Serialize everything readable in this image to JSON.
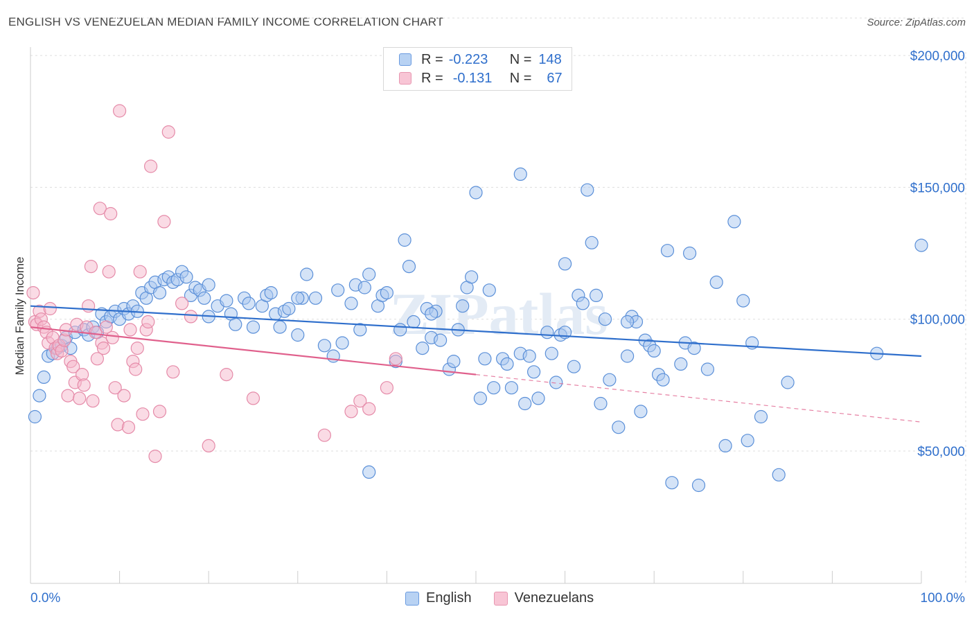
{
  "header": {
    "title": "ENGLISH VS VENEZUELAN MEDIAN FAMILY INCOME CORRELATION CHART",
    "source": "Source: ZipAtlas.com"
  },
  "legend": {
    "rows": [
      {
        "r_label": "R =",
        "r_value": "-0.223",
        "n_label": "N =",
        "n_value": "148"
      },
      {
        "r_label": "R =",
        "r_value": "-0.131",
        "n_label": "N =",
        "n_value": "67"
      }
    ]
  },
  "bottom_legend": {
    "english": "English",
    "venezuelans": "Venezuelans"
  },
  "watermark": "ZIPatlas",
  "colors": {
    "english_fill": "#a9c8f0",
    "english_stroke": "#5a8fd8",
    "english_line": "#2f6fcc",
    "venezuelan_fill": "#f6b8cc",
    "venezuelan_stroke": "#e58aa8",
    "venezuelan_line": "#e0608c",
    "axis_label": "#2f6fcc",
    "grid": "#dddddd"
  },
  "chart_data": {
    "type": "scatter",
    "title": "ENGLISH VS VENEZUELAN MEDIAN FAMILY INCOME CORRELATION CHART",
    "xlabel": "",
    "ylabel": "Median Family Income",
    "xlim": [
      0,
      100
    ],
    "ylim": [
      0,
      215000
    ],
    "x_tick_labels": [
      "0.0%",
      "100.0%"
    ],
    "y_ticks": [
      50000,
      100000,
      150000,
      200000
    ],
    "y_tick_labels": [
      "$50,000",
      "$100,000",
      "$150,000",
      "$200,000"
    ],
    "grid": true,
    "legend_position": "top-center",
    "series": [
      {
        "name": "English",
        "R": -0.223,
        "N": 148,
        "trend": {
          "x": [
            0,
            100
          ],
          "y": [
            105000,
            86000
          ]
        },
        "points": [
          [
            0.5,
            63000
          ],
          [
            1,
            71000
          ],
          [
            1.5,
            78000
          ],
          [
            2,
            86000
          ],
          [
            2.5,
            87000
          ],
          [
            3,
            89000
          ],
          [
            3.5,
            90000
          ],
          [
            4,
            93000
          ],
          [
            4.5,
            89000
          ],
          [
            5,
            95000
          ],
          [
            6,
            96000
          ],
          [
            6.5,
            94000
          ],
          [
            7,
            97000
          ],
          [
            7.5,
            95000
          ],
          [
            8,
            102000
          ],
          [
            8.5,
            99000
          ],
          [
            9,
            101000
          ],
          [
            9.5,
            103000
          ],
          [
            10,
            100000
          ],
          [
            10.5,
            104000
          ],
          [
            11,
            102000
          ],
          [
            11.5,
            105000
          ],
          [
            12,
            103000
          ],
          [
            12.5,
            110000
          ],
          [
            13,
            108000
          ],
          [
            13.5,
            112000
          ],
          [
            14,
            114000
          ],
          [
            14.5,
            110000
          ],
          [
            15,
            115000
          ],
          [
            15.5,
            116000
          ],
          [
            16,
            114000
          ],
          [
            16.5,
            115000
          ],
          [
            17,
            118000
          ],
          [
            17.5,
            116000
          ],
          [
            18,
            109000
          ],
          [
            18.5,
            112000
          ],
          [
            19,
            111000
          ],
          [
            19.5,
            108000
          ],
          [
            20,
            101000
          ],
          [
            21,
            105000
          ],
          [
            22,
            107000
          ],
          [
            22.5,
            102000
          ],
          [
            23,
            98000
          ],
          [
            24,
            108000
          ],
          [
            24.5,
            106000
          ],
          [
            25,
            97000
          ],
          [
            26,
            105000
          ],
          [
            26.5,
            109000
          ],
          [
            27,
            110000
          ],
          [
            27.5,
            102000
          ],
          [
            28,
            97000
          ],
          [
            28.5,
            103000
          ],
          [
            29,
            104000
          ],
          [
            30,
            94000
          ],
          [
            30.5,
            108000
          ],
          [
            31,
            117000
          ],
          [
            32,
            108000
          ],
          [
            33,
            90000
          ],
          [
            34,
            86000
          ],
          [
            34.5,
            111000
          ],
          [
            35,
            91000
          ],
          [
            36,
            106000
          ],
          [
            36.5,
            113000
          ],
          [
            37,
            96000
          ],
          [
            37.5,
            112000
          ],
          [
            38,
            117000
          ],
          [
            39,
            105000
          ],
          [
            39.5,
            109000
          ],
          [
            40,
            110000
          ],
          [
            41,
            84000
          ],
          [
            41.5,
            96000
          ],
          [
            42,
            130000
          ],
          [
            42.5,
            120000
          ],
          [
            43,
            99000
          ],
          [
            44,
            89000
          ],
          [
            44.5,
            104000
          ],
          [
            45,
            93000
          ],
          [
            45.5,
            103000
          ],
          [
            46,
            92000
          ],
          [
            47,
            81000
          ],
          [
            47.5,
            84000
          ],
          [
            48,
            96000
          ],
          [
            48.5,
            105000
          ],
          [
            49,
            112000
          ],
          [
            49.5,
            116000
          ],
          [
            50,
            148000
          ],
          [
            50.5,
            70000
          ],
          [
            51,
            85000
          ],
          [
            51.5,
            111000
          ],
          [
            52,
            74000
          ],
          [
            53,
            85000
          ],
          [
            53.5,
            83000
          ],
          [
            54,
            74000
          ],
          [
            55,
            87000
          ],
          [
            55.5,
            68000
          ],
          [
            56,
            86000
          ],
          [
            56.5,
            80000
          ],
          [
            57,
            70000
          ],
          [
            58,
            95000
          ],
          [
            58.5,
            87000
          ],
          [
            59,
            76000
          ],
          [
            59.5,
            94000
          ],
          [
            60,
            121000
          ],
          [
            61,
            82000
          ],
          [
            61.5,
            109000
          ],
          [
            62,
            106000
          ],
          [
            62.5,
            149000
          ],
          [
            63,
            129000
          ],
          [
            63.5,
            109000
          ],
          [
            64,
            68000
          ],
          [
            64.5,
            100000
          ],
          [
            65,
            77000
          ],
          [
            66,
            59000
          ],
          [
            67,
            86000
          ],
          [
            67.5,
            101000
          ],
          [
            68,
            99000
          ],
          [
            68.5,
            65000
          ],
          [
            69,
            92000
          ],
          [
            69.5,
            90000
          ],
          [
            70,
            88000
          ],
          [
            70.5,
            79000
          ],
          [
            71,
            77000
          ],
          [
            71.5,
            126000
          ],
          [
            72,
            38000
          ],
          [
            73,
            83000
          ],
          [
            73.5,
            91000
          ],
          [
            74,
            125000
          ],
          [
            74.5,
            89000
          ],
          [
            75,
            37000
          ],
          [
            76,
            81000
          ],
          [
            77,
            114000
          ],
          [
            78,
            52000
          ],
          [
            79,
            137000
          ],
          [
            80,
            107000
          ],
          [
            80.5,
            54000
          ],
          [
            81,
            91000
          ],
          [
            82,
            63000
          ],
          [
            84,
            41000
          ],
          [
            85,
            76000
          ],
          [
            95,
            87000
          ],
          [
            100,
            128000
          ],
          [
            55,
            155000
          ],
          [
            38,
            42000
          ],
          [
            67,
            99000
          ],
          [
            20,
            113000
          ],
          [
            30,
            108000
          ],
          [
            45,
            102000
          ],
          [
            60,
            95000
          ]
        ]
      },
      {
        "name": "Venezuelans",
        "R": -0.131,
        "N": 67,
        "trend": {
          "x": [
            0,
            50
          ],
          "y": [
            97000,
            79000
          ]
        },
        "trend_dashed": {
          "x": [
            50,
            100
          ],
          "y": [
            79000,
            61000
          ]
        },
        "points": [
          [
            0.3,
            110000
          ],
          [
            0.5,
            99000
          ],
          [
            0.7,
            98000
          ],
          [
            1,
            103000
          ],
          [
            1.2,
            100000
          ],
          [
            1.5,
            97000
          ],
          [
            1.8,
            95000
          ],
          [
            2,
            91000
          ],
          [
            2.2,
            104000
          ],
          [
            2.5,
            93000
          ],
          [
            2.8,
            89000
          ],
          [
            3,
            87000
          ],
          [
            3.2,
            90000
          ],
          [
            3.5,
            88000
          ],
          [
            3.8,
            92000
          ],
          [
            4,
            96000
          ],
          [
            4.2,
            71000
          ],
          [
            4.5,
            84000
          ],
          [
            4.8,
            82000
          ],
          [
            5,
            76000
          ],
          [
            5.2,
            98000
          ],
          [
            5.5,
            70000
          ],
          [
            5.8,
            79000
          ],
          [
            6,
            75000
          ],
          [
            6.3,
            97000
          ],
          [
            6.5,
            105000
          ],
          [
            6.8,
            120000
          ],
          [
            7,
            69000
          ],
          [
            7.3,
            95000
          ],
          [
            7.5,
            85000
          ],
          [
            7.8,
            142000
          ],
          [
            8,
            91000
          ],
          [
            8.2,
            89000
          ],
          [
            8.5,
            97000
          ],
          [
            8.8,
            118000
          ],
          [
            9,
            140000
          ],
          [
            9.2,
            93000
          ],
          [
            9.5,
            74000
          ],
          [
            9.8,
            60000
          ],
          [
            10,
            179000
          ],
          [
            10.5,
            71000
          ],
          [
            11,
            59000
          ],
          [
            11.2,
            96000
          ],
          [
            11.5,
            84000
          ],
          [
            11.8,
            81000
          ],
          [
            12,
            89000
          ],
          [
            12.3,
            118000
          ],
          [
            12.6,
            64000
          ],
          [
            13,
            96000
          ],
          [
            13.2,
            99000
          ],
          [
            13.5,
            158000
          ],
          [
            14,
            48000
          ],
          [
            14.5,
            65000
          ],
          [
            15,
            137000
          ],
          [
            15.5,
            171000
          ],
          [
            16,
            80000
          ],
          [
            17,
            106000
          ],
          [
            18,
            101000
          ],
          [
            20,
            52000
          ],
          [
            22,
            79000
          ],
          [
            25,
            70000
          ],
          [
            33,
            56000
          ],
          [
            36,
            65000
          ],
          [
            37,
            69000
          ],
          [
            38,
            66000
          ],
          [
            40,
            74000
          ],
          [
            41,
            85000
          ]
        ]
      }
    ]
  }
}
